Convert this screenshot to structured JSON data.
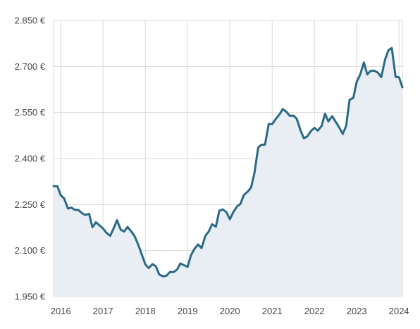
{
  "chart_data": {
    "type": "area",
    "title": "",
    "xlabel": "",
    "ylabel": "",
    "ylim": [
      1950,
      2850
    ],
    "xlim": [
      2015.83,
      2024.08
    ],
    "y_ticks": [
      1950,
      2100,
      2250,
      2400,
      2550,
      2700,
      2850
    ],
    "y_tick_labels": [
      "1.950 €",
      "2.100 €",
      "2.250 €",
      "2.400 €",
      "2.550 €",
      "2.700 €",
      "2.850 €"
    ],
    "x_ticks": [
      2016,
      2017,
      2018,
      2019,
      2020,
      2021,
      2022,
      2023,
      2024
    ],
    "x_tick_labels": [
      "2016",
      "2017",
      "2018",
      "2019",
      "2020",
      "2021",
      "2022",
      "2023",
      "2024"
    ],
    "grid": true,
    "colors": {
      "line": "#2b6a86",
      "area": "#e8eef3",
      "grid": "#d9d9d9"
    },
    "series": [
      {
        "x": [
          2015.83,
          2015.92,
          2016.0,
          2016.08,
          2016.17,
          2016.25,
          2016.33,
          2016.42,
          2016.5,
          2016.58,
          2016.67,
          2016.75,
          2016.83,
          2016.92,
          2017.0,
          2017.08,
          2017.17,
          2017.25,
          2017.33,
          2017.42,
          2017.5,
          2017.58,
          2017.67,
          2017.75,
          2017.83,
          2017.92,
          2018.0,
          2018.08,
          2018.17,
          2018.25,
          2018.33,
          2018.42,
          2018.5,
          2018.58,
          2018.67,
          2018.75,
          2018.83,
          2018.92,
          2019.0,
          2019.08,
          2019.17,
          2019.25,
          2019.33,
          2019.42,
          2019.5,
          2019.58,
          2019.67,
          2019.75,
          2019.83,
          2019.92,
          2020.0,
          2020.08,
          2020.17,
          2020.25,
          2020.33,
          2020.42,
          2020.5,
          2020.58,
          2020.67,
          2020.75,
          2020.83,
          2020.92,
          2021.0,
          2021.08,
          2021.17,
          2021.25,
          2021.33,
          2021.42,
          2021.5,
          2021.58,
          2021.67,
          2021.75,
          2021.83,
          2021.92,
          2022.0,
          2022.08,
          2022.17,
          2022.25,
          2022.33,
          2022.42,
          2022.5,
          2022.58,
          2022.67,
          2022.75,
          2022.83,
          2022.92,
          2023.0,
          2023.08,
          2023.17,
          2023.25,
          2023.33,
          2023.42,
          2023.5,
          2023.58,
          2023.67,
          2023.75,
          2023.83,
          2023.92,
          2024.0,
          2024.08
        ],
        "values": [
          2310,
          2310,
          2280,
          2270,
          2237,
          2240,
          2233,
          2232,
          2222,
          2216,
          2220,
          2176,
          2192,
          2182,
          2172,
          2158,
          2148,
          2172,
          2199,
          2168,
          2162,
          2177,
          2162,
          2146,
          2120,
          2086,
          2055,
          2043,
          2056,
          2049,
          2022,
          2016,
          2018,
          2030,
          2030,
          2038,
          2058,
          2052,
          2047,
          2085,
          2107,
          2120,
          2108,
          2148,
          2162,
          2186,
          2178,
          2230,
          2234,
          2225,
          2202,
          2225,
          2244,
          2252,
          2281,
          2292,
          2305,
          2352,
          2436,
          2445,
          2445,
          2513,
          2512,
          2528,
          2543,
          2561,
          2553,
          2539,
          2540,
          2530,
          2492,
          2466,
          2472,
          2490,
          2500,
          2491,
          2506,
          2546,
          2521,
          2538,
          2520,
          2503,
          2480,
          2506,
          2591,
          2598,
          2650,
          2673,
          2713,
          2674,
          2686,
          2686,
          2680,
          2665,
          2722,
          2753,
          2760,
          2666,
          2665,
          2632
        ]
      }
    ]
  }
}
